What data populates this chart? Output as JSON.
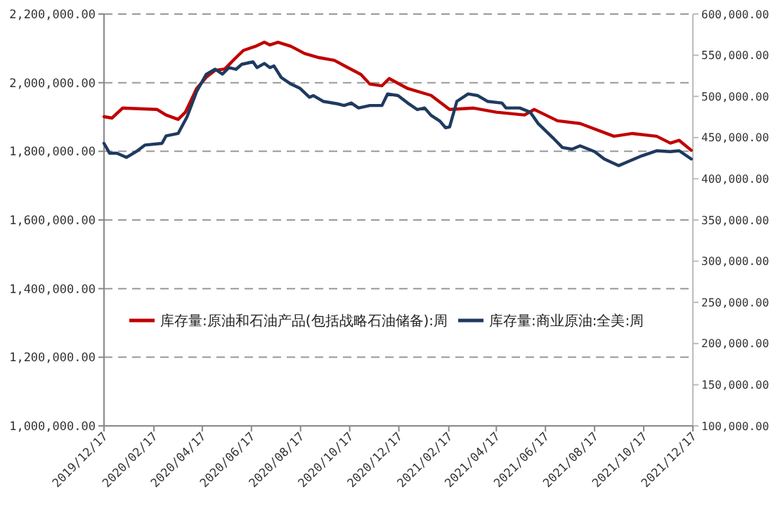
{
  "chart_data": {
    "type": "line",
    "grid": "y",
    "legend": "bottom",
    "line_style": "solid",
    "marker": "none",
    "xlim": [
      "2019-12-17",
      "2021-12-17"
    ],
    "xticks": [
      {
        "value": "2019-12-17",
        "label": "2019/12/17"
      },
      {
        "value": "2020-02-17",
        "label": "2020/02/17"
      },
      {
        "value": "2020-04-17",
        "label": "2020/04/17"
      },
      {
        "value": "2020-06-17",
        "label": "2020/06/17"
      },
      {
        "value": "2020-08-17",
        "label": "2020/08/17"
      },
      {
        "value": "2020-10-17",
        "label": "2020/10/17"
      },
      {
        "value": "2020-12-17",
        "label": "2020/12/17"
      },
      {
        "value": "2021-02-17",
        "label": "2021/02/17"
      },
      {
        "value": "2021-04-17",
        "label": "2021/04/17"
      },
      {
        "value": "2021-06-17",
        "label": "2021/06/17"
      },
      {
        "value": "2021-08-17",
        "label": "2021/08/17"
      },
      {
        "value": "2021-10-17",
        "label": "2021/10/17"
      },
      {
        "value": "2021-12-17",
        "label": "2021/12/17"
      }
    ],
    "ylim": [
      1000000,
      2200000
    ],
    "yticks": [
      {
        "value": 1000000,
        "label": "1,000,000.00"
      },
      {
        "value": 1200000,
        "label": "1,200,000.00"
      },
      {
        "value": 1400000,
        "label": "1,400,000.00"
      },
      {
        "value": 1600000,
        "label": "1,600,000.00"
      },
      {
        "value": 1800000,
        "label": "1,800,000.00"
      },
      {
        "value": 2000000,
        "label": "2,000,000.00"
      },
      {
        "value": 2200000,
        "label": "2,200,000.00"
      }
    ],
    "y2lim": [
      100000,
      600000
    ],
    "y2ticks": [
      {
        "value": 100000,
        "label": "100,000.00"
      },
      {
        "value": 150000,
        "label": "150,000.00"
      },
      {
        "value": 200000,
        "label": "200,000.00"
      },
      {
        "value": 250000,
        "label": "250,000.00"
      },
      {
        "value": 300000,
        "label": "300,000.00"
      },
      {
        "value": 350000,
        "label": "350,000.00"
      },
      {
        "value": 400000,
        "label": "400,000.00"
      },
      {
        "value": 450000,
        "label": "450,000.00"
      },
      {
        "value": 500000,
        "label": "500,000.00"
      },
      {
        "value": 550000,
        "label": "550,000.00"
      },
      {
        "value": 600000,
        "label": "600,000.00"
      }
    ],
    "series": [
      {
        "name": "库存量:原油和石油产品(包括战略石油储备):周",
        "color": "#c00000",
        "x": [
          "2019-12-17",
          "2019-12-27",
          "2020-01-09",
          "2020-02-21",
          "2020-03-03",
          "2020-03-18",
          "2020-03-27",
          "2020-04-10",
          "2020-04-22",
          "2020-05-03",
          "2020-05-15",
          "2020-05-27",
          "2020-06-07",
          "2020-06-22",
          "2020-07-03",
          "2020-07-10",
          "2020-07-20",
          "2020-08-05",
          "2020-08-22",
          "2020-09-09",
          "2020-09-28",
          "2020-10-14",
          "2020-10-31",
          "2020-11-11",
          "2020-11-26",
          "2020-12-05",
          "2020-12-28",
          "2021-01-26",
          "2021-02-18",
          "2021-03-20",
          "2021-04-17",
          "2021-05-22",
          "2021-06-03",
          "2021-07-02",
          "2021-07-30",
          "2021-09-10",
          "2021-10-03",
          "2021-11-02",
          "2021-11-19",
          "2021-11-30",
          "2021-12-15"
        ],
        "values": [
          1901000,
          1897000,
          1926000,
          1922000,
          1906000,
          1893000,
          1914000,
          1983000,
          2016000,
          2036000,
          2040000,
          2069000,
          2094000,
          2106000,
          2118000,
          2110000,
          2118000,
          2106000,
          2085000,
          2073000,
          2065000,
          2045000,
          2024000,
          1996000,
          1991000,
          2012000,
          1983000,
          1963000,
          1922000,
          1926000,
          1914000,
          1906000,
          1922000,
          1889000,
          1881000,
          1844000,
          1852000,
          1844000,
          1824000,
          1832000,
          1803000
        ]
      },
      {
        "name": "库存量:商业原油:全美:周",
        "color": "#1f3a5f",
        "axis": "y2",
        "x": [
          "2019-12-17",
          "2019-12-24",
          "2020-01-02",
          "2020-01-14",
          "2020-01-26",
          "2020-02-06",
          "2020-02-27",
          "2020-03-03",
          "2020-03-18",
          "2020-03-29",
          "2020-04-10",
          "2020-04-22",
          "2020-05-03",
          "2020-05-12",
          "2020-05-20",
          "2020-05-29",
          "2020-06-05",
          "2020-06-19",
          "2020-06-24",
          "2020-07-03",
          "2020-07-10",
          "2020-07-15",
          "2020-07-24",
          "2020-08-05",
          "2020-08-16",
          "2020-08-28",
          "2020-09-02",
          "2020-09-14",
          "2020-10-02",
          "2020-10-10",
          "2020-10-19",
          "2020-10-28",
          "2020-11-11",
          "2020-11-26",
          "2020-12-03",
          "2020-12-16",
          "2020-12-28",
          "2021-01-09",
          "2021-01-18",
          "2021-01-26",
          "2021-02-06",
          "2021-02-13",
          "2021-02-18",
          "2021-02-27",
          "2021-03-13",
          "2021-03-25",
          "2021-04-06",
          "2021-04-24",
          "2021-04-29",
          "2021-05-16",
          "2021-05-29",
          "2021-06-08",
          "2021-06-26",
          "2021-07-08",
          "2021-07-20",
          "2021-07-30",
          "2021-08-17",
          "2021-08-29",
          "2021-09-16",
          "2021-09-28",
          "2021-10-15",
          "2021-11-02",
          "2021-11-19",
          "2021-11-30",
          "2021-12-15"
        ],
        "values": [
          443000,
          431000,
          431000,
          426000,
          433000,
          441000,
          443000,
          452000,
          455000,
          475000,
          506000,
          527000,
          533000,
          527000,
          535000,
          533000,
          539000,
          542000,
          535000,
          540000,
          535000,
          537000,
          523000,
          515000,
          510000,
          499000,
          501000,
          494000,
          491000,
          489000,
          492000,
          486000,
          489000,
          489000,
          503000,
          501000,
          492000,
          484000,
          486000,
          477000,
          470000,
          462000,
          463000,
          494000,
          503000,
          501000,
          494000,
          492000,
          486000,
          486000,
          481000,
          467000,
          450000,
          438000,
          436000,
          440000,
          433000,
          424000,
          416000,
          421000,
          428000,
          434000,
          433000,
          434000,
          424000
        ]
      }
    ]
  }
}
